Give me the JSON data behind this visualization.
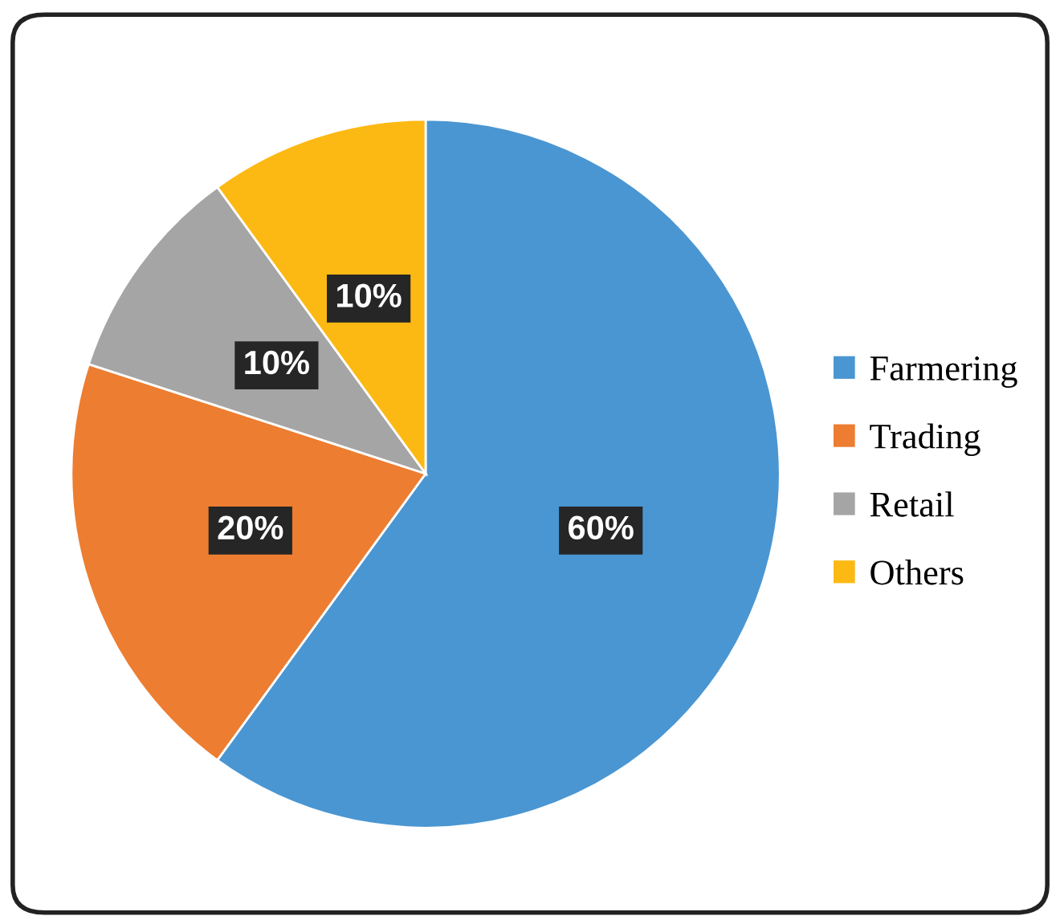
{
  "chart_data": {
    "type": "pie",
    "categories": [
      "Farmering",
      "Trading",
      "Retail",
      "Others"
    ],
    "values": [
      60,
      20,
      10,
      10
    ],
    "colors": [
      "#4a96d2",
      "#ed7d31",
      "#a5a5a5",
      "#fdb913"
    ],
    "value_labels": [
      "60%",
      "20%",
      "10%",
      "10%"
    ],
    "legend": "right"
  }
}
